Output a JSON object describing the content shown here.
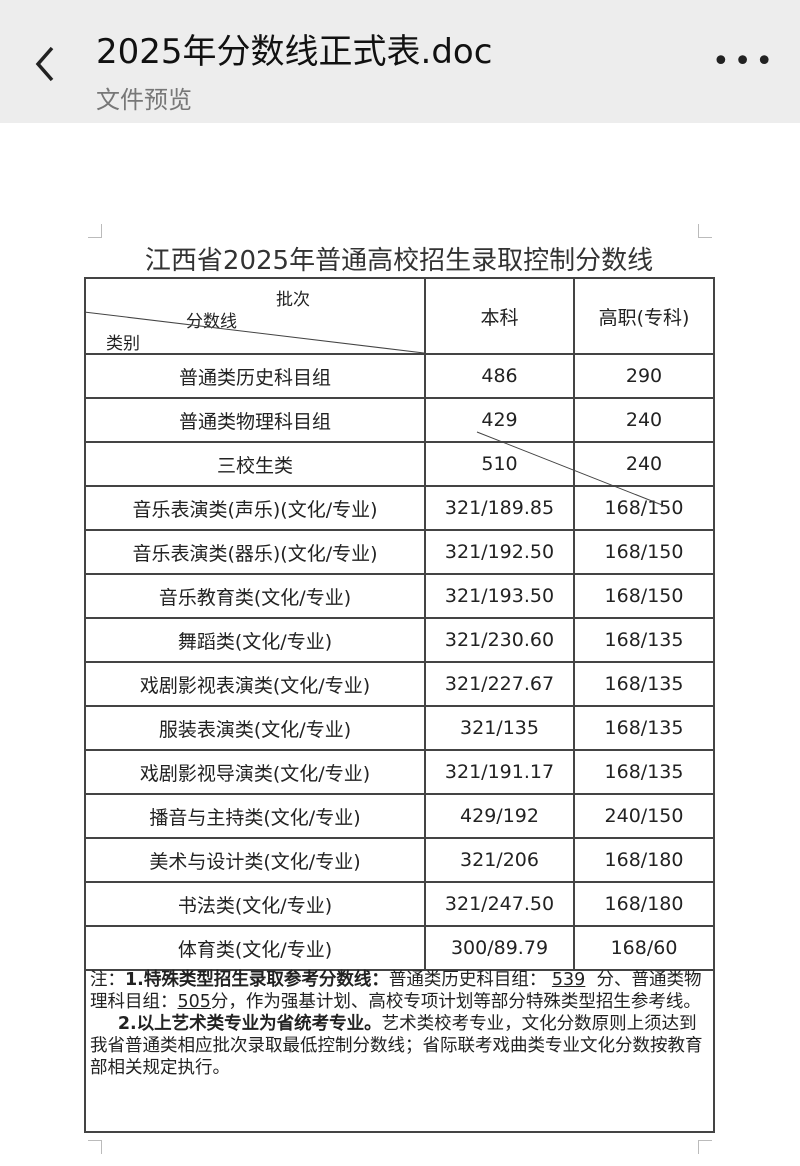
{
  "header": {
    "title": "2025年分数线正式表.doc",
    "subtitle": "文件预览"
  },
  "document": {
    "title": "江西省2025年普通高校招生录取控制分数线",
    "table": {
      "header": {
        "top": "批次",
        "middle": "分数线",
        "bottom": "类别",
        "col2": "本科",
        "col3": "高职(专科)"
      },
      "rows": [
        [
          "普通类历史科目组",
          "486",
          "290"
        ],
        [
          "普通类物理科目组",
          "429",
          "240"
        ],
        [
          "三校生类",
          "510",
          "240"
        ],
        [
          "音乐表演类(声乐)(文化/专业)",
          "321/189.85",
          "168/150"
        ],
        [
          "音乐表演类(器乐)(文化/专业)",
          "321/192.50",
          "168/150"
        ],
        [
          "音乐教育类(文化/专业)",
          "321/193.50",
          "168/150"
        ],
        [
          "舞蹈类(文化/专业)",
          "321/230.60",
          "168/135"
        ],
        [
          "戏剧影视表演类(文化/专业)",
          "321/227.67",
          "168/135"
        ],
        [
          "服装表演类(文化/专业)",
          "321/135",
          "168/135"
        ],
        [
          "戏剧影视导演类(文化/专业)",
          "321/191.17",
          "168/135"
        ],
        [
          "播音与主持类(文化/专业)",
          "429/192",
          "240/150"
        ],
        [
          "美术与设计类(文化/专业)",
          "321/206",
          "168/180"
        ],
        [
          "书法类(文化/专业)",
          "321/247.50",
          "168/180"
        ],
        [
          "体育类(文化/专业)",
          "300/89.79",
          "168/60"
        ]
      ]
    },
    "note": {
      "prefix": "注：",
      "p1_bold": "1.特殊类型招生录取参考分数线：",
      "p1_a": "普通类历史科目组：",
      "p1_v1": "539",
      "p1_b": "分、普通类物理科目组：",
      "p1_v2": "505",
      "p1_c": "分，作为强基计划、高校专项计划等部分特殊类型招生参考线。",
      "p2_bold": "2.以上艺术类专业为省统考专业。",
      "p2_text": "艺术类校考专业，文化分数原则上须达到我省普通类相应批次录取最低控制分数线；省际联考戏曲类专业文化分数按教育部相关规定执行。"
    }
  }
}
